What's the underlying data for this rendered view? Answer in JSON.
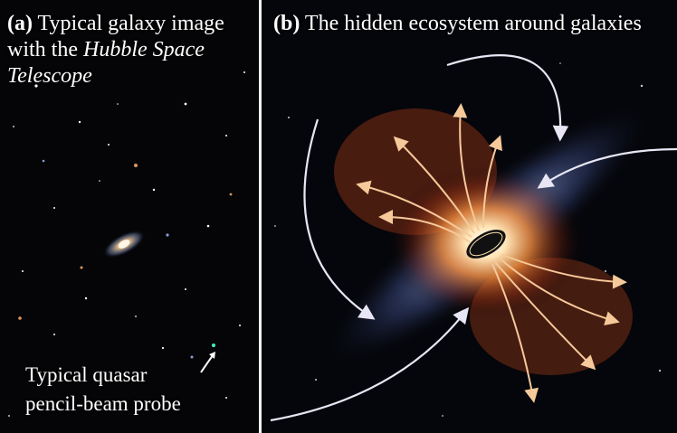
{
  "panel_a": {
    "label": "(a)",
    "title_prefix": " Typical galaxy image with the ",
    "title_italic": "Hubble Space Telescope",
    "probe_line1": "Typical quasar",
    "probe_line2": "pencil-beam probe"
  },
  "panel_b": {
    "label": "(b)",
    "title": " The hidden ecosystem around galaxies"
  },
  "colors": {
    "outflow": "#f6c99a",
    "inflow": "#e8e6f5",
    "quasar": "#3ef0c0"
  }
}
